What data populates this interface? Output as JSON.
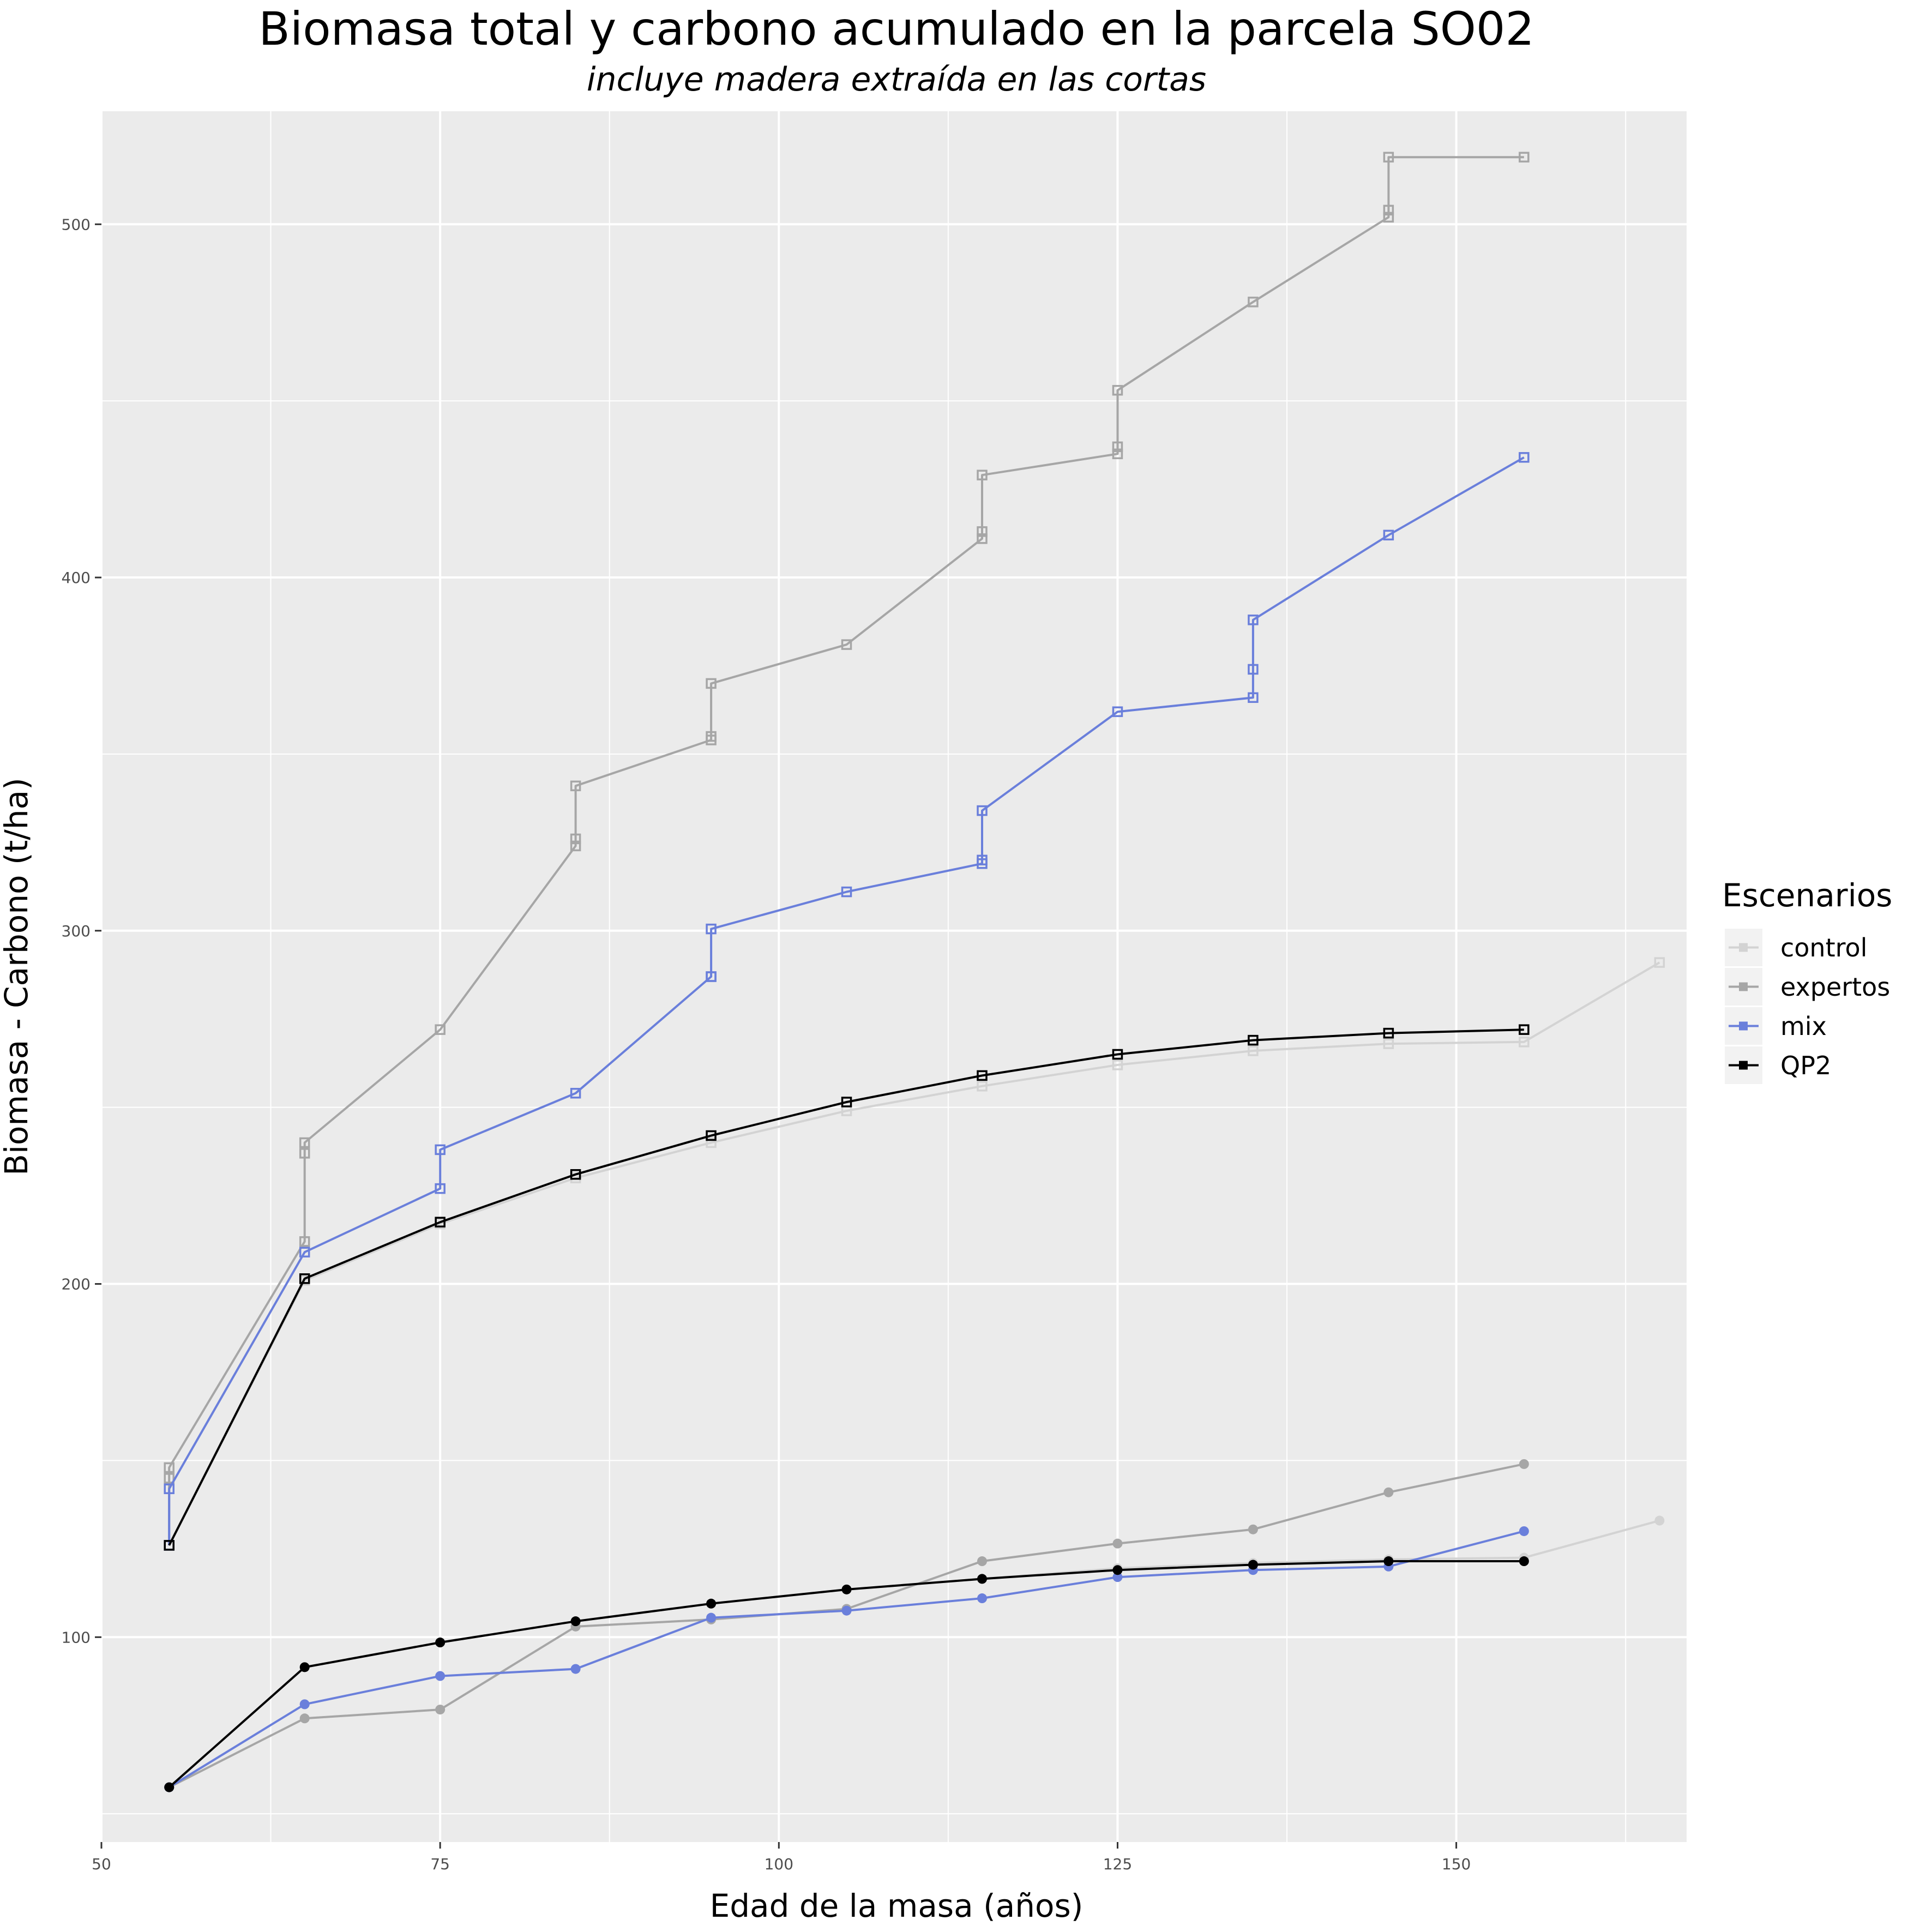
{
  "chart_data": {
    "type": "line",
    "title": "Biomasa total y carbono acumulado en la parcela SO02",
    "subtitle": "incluye madera extraída en las cortas",
    "xlabel": "Edad de la masa (años)",
    "ylabel": "Biomasa - Carbono (t/ha)",
    "xlim": [
      50,
      167
    ],
    "ylim": [
      42,
      532
    ],
    "x_ticks": [
      50,
      75,
      100,
      125,
      150
    ],
    "x_minor_ticks": [
      62.5,
      87.5,
      112.5,
      137.5,
      162.5
    ],
    "y_ticks": [
      100,
      200,
      300,
      400,
      500
    ],
    "y_minor_ticks": [
      50,
      150,
      250,
      350,
      450
    ],
    "grid": true,
    "panel_background": "#ebebeb",
    "legend": {
      "title": "Escenarios",
      "position": "right",
      "entries": [
        "control",
        "expertos",
        "mix",
        "QP2"
      ]
    },
    "series": [
      {
        "name": "control",
        "color": "#d3d3d3",
        "metric": "biomasa",
        "marker": "open-square",
        "points": [
          [
            55,
            126
          ],
          [
            65,
            201
          ],
          [
            75,
            217
          ],
          [
            85,
            230
          ],
          [
            95,
            240
          ],
          [
            105,
            249
          ],
          [
            115,
            256
          ],
          [
            125,
            262
          ],
          [
            135,
            266
          ],
          [
            145,
            268
          ],
          [
            155,
            268.5
          ],
          [
            165,
            291
          ]
        ]
      },
      {
        "name": "expertos",
        "color": "#a6a6a6",
        "metric": "biomasa",
        "marker": "open-square",
        "points": [
          [
            55,
            126
          ],
          [
            55,
            145
          ],
          [
            55,
            148
          ],
          [
            65,
            212
          ],
          [
            65,
            237
          ],
          [
            65,
            240
          ],
          [
            75,
            272
          ],
          [
            85,
            324
          ],
          [
            85,
            326
          ],
          [
            85,
            341
          ],
          [
            95,
            354
          ],
          [
            95,
            355
          ],
          [
            95,
            370
          ],
          [
            105,
            381
          ],
          [
            115,
            411
          ],
          [
            115,
            413
          ],
          [
            115,
            429
          ],
          [
            125,
            435
          ],
          [
            125,
            437
          ],
          [
            125,
            453
          ],
          [
            135,
            478
          ],
          [
            145,
            502
          ],
          [
            145,
            504
          ],
          [
            145,
            519
          ],
          [
            155,
            519
          ]
        ]
      },
      {
        "name": "mix",
        "color": "#6a7fdb",
        "metric": "biomasa",
        "marker": "open-square",
        "points": [
          [
            55,
            126
          ],
          [
            55,
            142
          ],
          [
            65,
            209
          ],
          [
            75,
            227
          ],
          [
            75,
            238
          ],
          [
            85,
            254
          ],
          [
            95,
            287
          ],
          [
            95,
            287
          ],
          [
            95,
            300.5
          ],
          [
            105,
            311
          ],
          [
            115,
            319
          ],
          [
            115,
            320
          ],
          [
            115,
            334
          ],
          [
            125,
            362
          ],
          [
            135,
            366
          ],
          [
            135,
            374
          ],
          [
            135,
            388
          ],
          [
            145,
            412
          ],
          [
            155,
            434
          ]
        ]
      },
      {
        "name": "QP2",
        "color": "#000000",
        "metric": "biomasa",
        "marker": "open-square",
        "points": [
          [
            55,
            126
          ],
          [
            65,
            201.5
          ],
          [
            75,
            217.5
          ],
          [
            85,
            231
          ],
          [
            95,
            242
          ],
          [
            105,
            251.5
          ],
          [
            115,
            259
          ],
          [
            125,
            265
          ],
          [
            135,
            269
          ],
          [
            145,
            271
          ],
          [
            155,
            272
          ]
        ]
      },
      {
        "name": "control",
        "color": "#d3d3d3",
        "metric": "carbono",
        "marker": "filled-circle",
        "points": [
          [
            55,
            57.5
          ],
          [
            65,
            91.5
          ],
          [
            75,
            98.5
          ],
          [
            85,
            104.5
          ],
          [
            95,
            109.5
          ],
          [
            105,
            113.5
          ],
          [
            115,
            116.5
          ],
          [
            125,
            119.5
          ],
          [
            135,
            121
          ],
          [
            145,
            122
          ],
          [
            155,
            122.5
          ],
          [
            165,
            133
          ]
        ]
      },
      {
        "name": "expertos",
        "color": "#a6a6a6",
        "metric": "carbono",
        "marker": "filled-circle",
        "points": [
          [
            55,
            57.5
          ],
          [
            65,
            77
          ],
          [
            75,
            79.5
          ],
          [
            85,
            103
          ],
          [
            95,
            105
          ],
          [
            105,
            108
          ],
          [
            115,
            121.5
          ],
          [
            125,
            126.5
          ],
          [
            135,
            130.5
          ],
          [
            145,
            141
          ],
          [
            155,
            149
          ]
        ]
      },
      {
        "name": "mix",
        "color": "#6a7fdb",
        "metric": "carbono",
        "marker": "filled-circle",
        "points": [
          [
            55,
            57.5
          ],
          [
            65,
            81
          ],
          [
            75,
            89
          ],
          [
            85,
            91
          ],
          [
            95,
            105.5
          ],
          [
            105,
            107.5
          ],
          [
            115,
            111
          ],
          [
            125,
            117
          ],
          [
            135,
            119
          ],
          [
            145,
            120
          ],
          [
            155,
            130
          ]
        ]
      },
      {
        "name": "QP2",
        "color": "#000000",
        "metric": "carbono",
        "marker": "filled-circle",
        "points": [
          [
            55,
            57.5
          ],
          [
            65,
            91.5
          ],
          [
            75,
            98.5
          ],
          [
            85,
            104.5
          ],
          [
            95,
            109.5
          ],
          [
            105,
            113.5
          ],
          [
            115,
            116.5
          ],
          [
            125,
            119
          ],
          [
            135,
            120.5
          ],
          [
            145,
            121.5
          ],
          [
            155,
            121.5
          ]
        ]
      }
    ]
  }
}
